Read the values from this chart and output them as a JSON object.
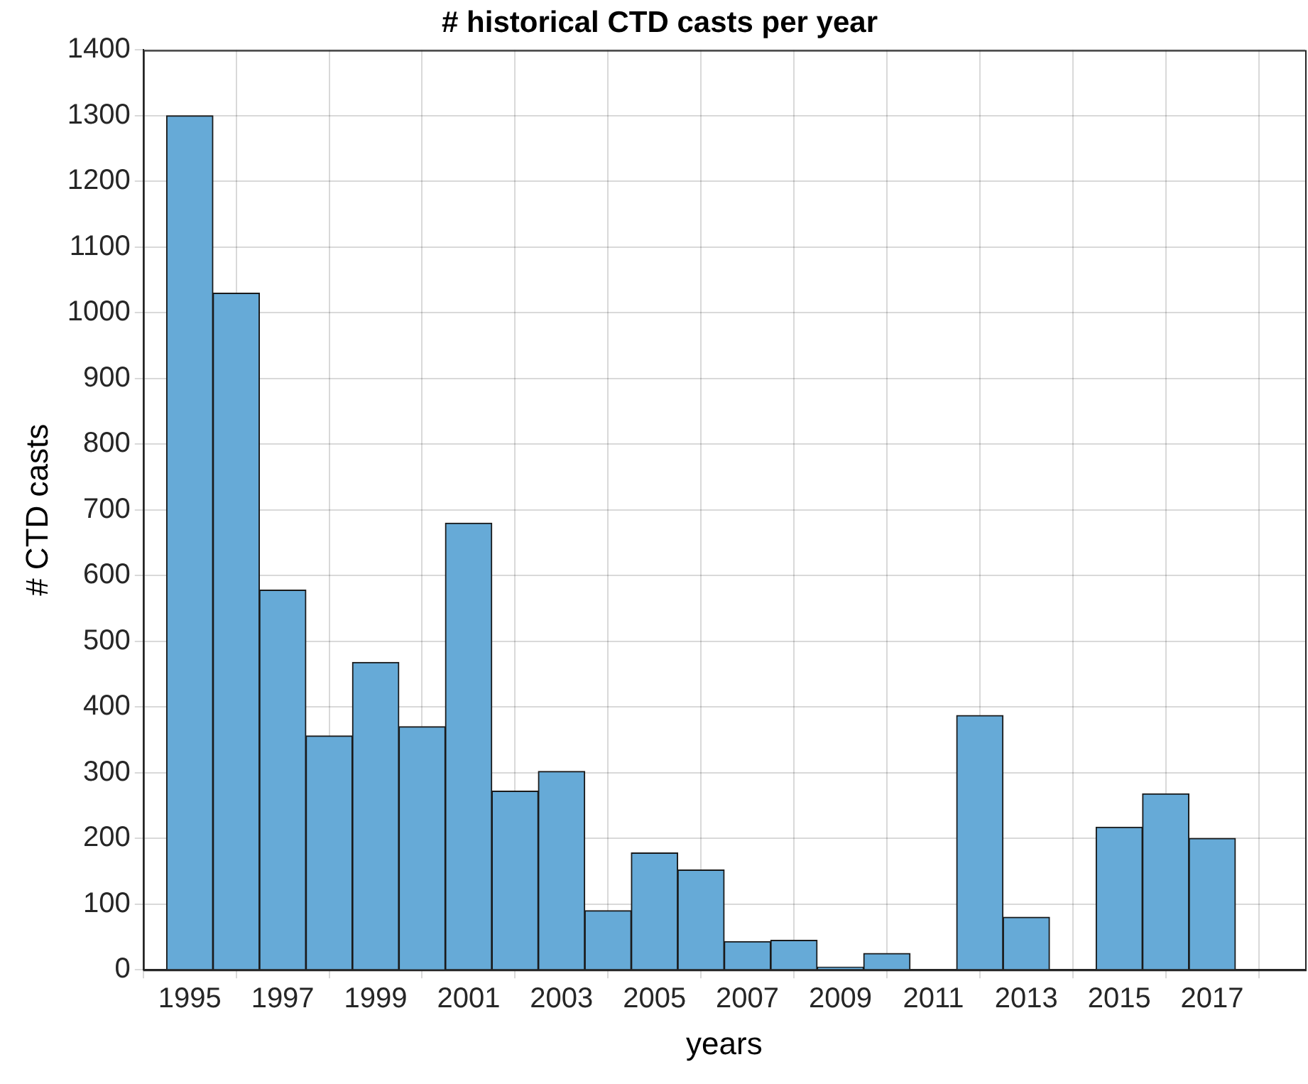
{
  "chart_data": {
    "type": "histogram",
    "title": "# historical CTD casts per year",
    "xlabel": "years",
    "ylabel": "# CTD casts",
    "bins": [
      1994.5,
      1995.5,
      1996.5,
      1997.5,
      1998.5,
      1999.5,
      2000.5,
      2001.5,
      2002.5,
      2003.5,
      2004.5,
      2005.5,
      2006.5,
      2007.5,
      2008.5,
      2009.5,
      2010.5,
      2011.5,
      2012.5,
      2013.5,
      2014.5,
      2015.5,
      2016.5,
      2017.5
    ],
    "values": [
      1300,
      1030,
      578,
      356,
      468,
      370,
      680,
      272,
      302,
      90,
      178,
      152,
      43,
      45,
      4,
      25,
      0,
      387,
      80,
      0,
      217,
      268,
      200
    ],
    "color": "#66aad7",
    "xlim": [
      1994,
      2019
    ],
    "xticks": [
      1995,
      1997,
      1999,
      2001,
      2003,
      2005,
      2007,
      2009,
      2011,
      2013,
      2015,
      2017
    ],
    "ylim": [
      0,
      1400
    ],
    "yticks": [
      0,
      100,
      200,
      300,
      400,
      500,
      600,
      700,
      800,
      900,
      1000,
      1100,
      1200,
      1300,
      1400
    ],
    "grid": true,
    "legend": false
  }
}
